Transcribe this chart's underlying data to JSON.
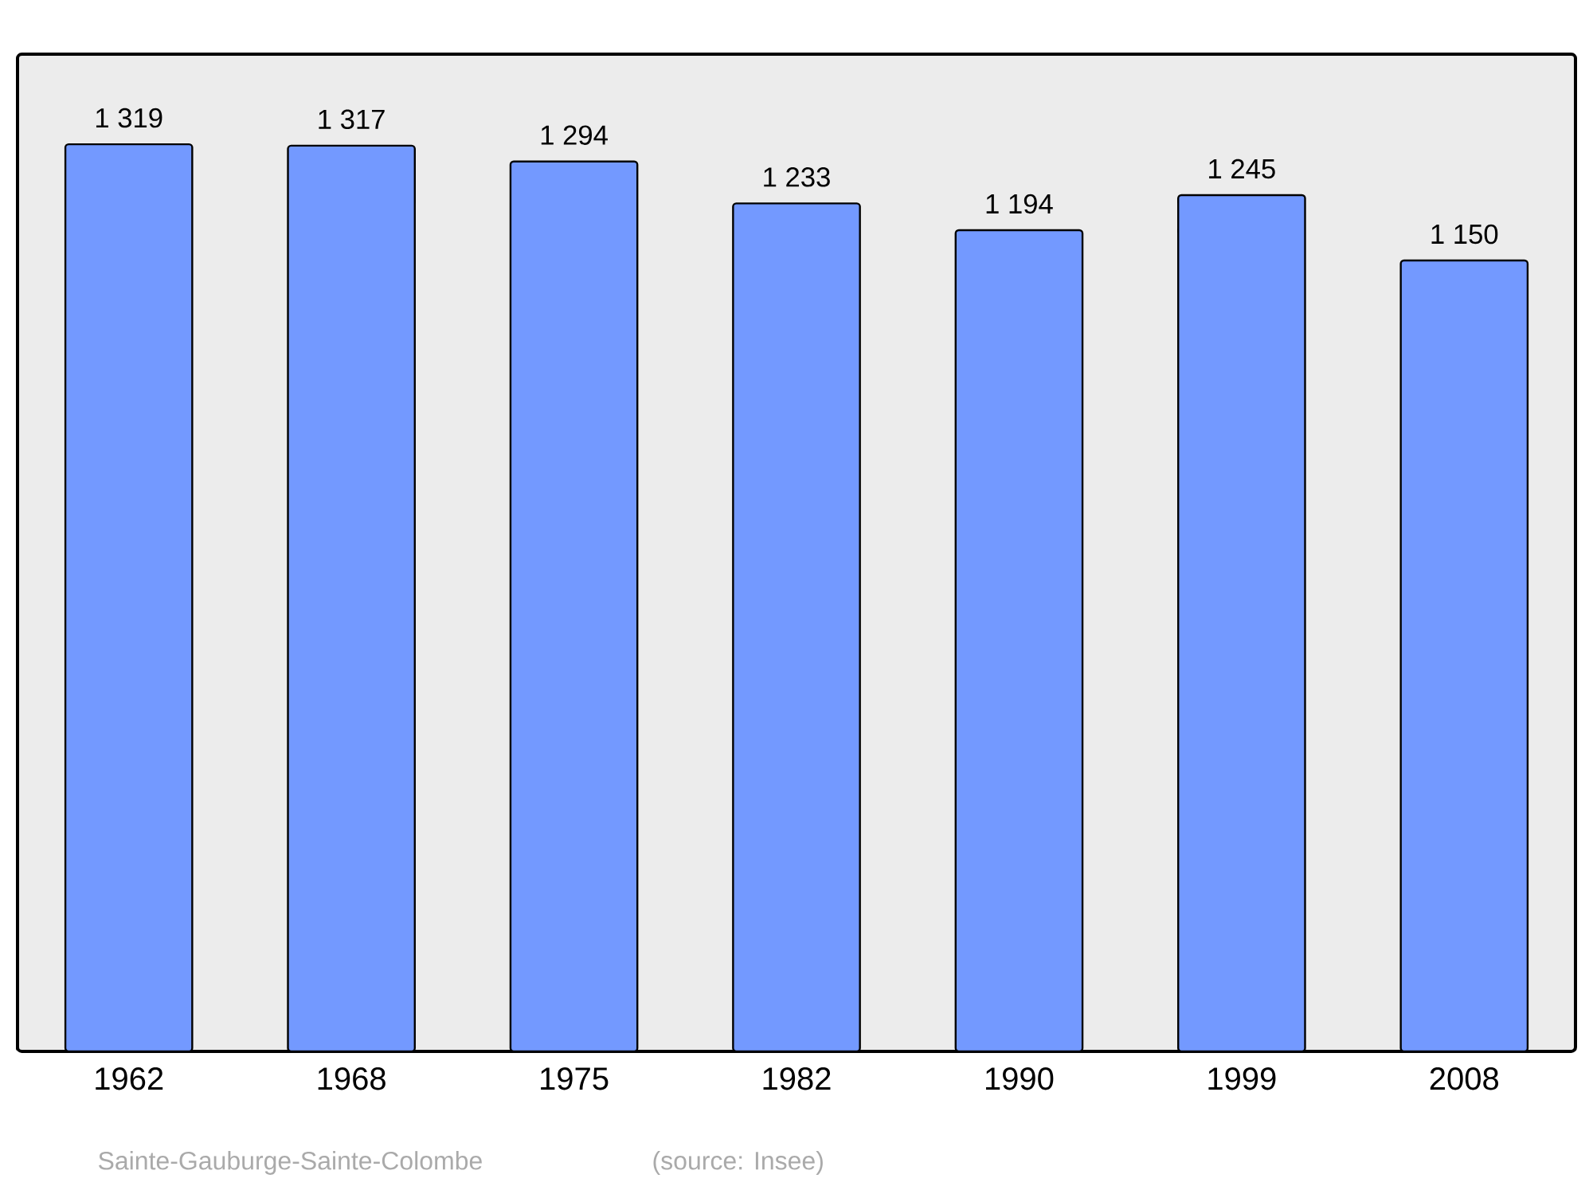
{
  "chart_data": {
    "type": "bar",
    "categories": [
      "1962",
      "1968",
      "1975",
      "1982",
      "1990",
      "1999",
      "2008"
    ],
    "values": [
      1319,
      1317,
      1294,
      1233,
      1194,
      1245,
      1150
    ],
    "value_labels": [
      "1 319",
      "1 317",
      "1 294",
      "1 233",
      "1 194",
      "1 245",
      "1 150"
    ],
    "color": "#7399ff",
    "ylim": [
      0,
      1450
    ],
    "annotations": [
      "Sainte-Gauburge-Sainte-Colombe",
      "(source: Insee)"
    ]
  }
}
